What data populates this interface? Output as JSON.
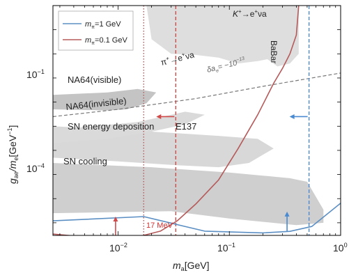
{
  "chart_data": {
    "type": "line",
    "xlabel_main": "m",
    "xlabel_sub": "a",
    "xlabel_unit": "[GeV]",
    "ylabel_main": "g",
    "ylabel_sub": "ae",
    "ylabel_slash": "/m",
    "ylabel_sub2": "e",
    "ylabel_unit": "[GeV",
    "ylabel_exp": "−1",
    "ylabel_close": "]",
    "x_scale": "log",
    "y_scale": "log",
    "xlim": [
      0.0026,
      1.0
    ],
    "ylim": [
      3e-07,
      1000
    ],
    "x_ticks": [
      {
        "value": 0.01,
        "base": "10",
        "exp": "−2"
      },
      {
        "value": 0.1,
        "base": "10",
        "exp": "−1"
      },
      {
        "value": 1.0,
        "base": "10",
        "exp": "0"
      }
    ],
    "y_ticks": [
      {
        "value": 0.1,
        "base": "10",
        "exp": "−1"
      },
      {
        "value": 0.0001,
        "base": "10",
        "exp": "−4"
      }
    ],
    "legend": {
      "position": "top-left",
      "entries": [
        {
          "label_pre": "m",
          "label_sub": "π",
          "label_post": "=1 GeV",
          "color": "#5b8fc4"
        },
        {
          "label_pre": "m",
          "label_sub": "π",
          "label_post": "=0.1 GeV",
          "color": "#b55a5a"
        }
      ]
    },
    "region_labels": {
      "kaon_pre": "K",
      "kaon_sup": "+",
      "kaon_arrow": "→e",
      "kaon_sup2": "+",
      "kaon_post": "νa",
      "babar": "BaBar",
      "pion_pre": "π",
      "pion_sup": "+",
      "pion_arrow": "→e",
      "pion_sup2": "+",
      "pion_post": "νa",
      "delta_a": "δa",
      "delta_sub": "e",
      "delta_eq": "= −10",
      "delta_exp": "−13",
      "na64_visible": "NA64(visible)",
      "na64_invisible": "NA64(invisible)",
      "sn_energy": "SN energy deposition",
      "e137": "E137",
      "sn_cooling": "SN cooling",
      "mev17": "17 MeV"
    },
    "series": [
      {
        "name": "",
        "color": "#5b8fc4",
        "points": [
          [
            0.0026,
            1.2e-06
          ],
          [
            0.017,
            1.8e-06
          ],
          [
            0.06,
            4.5e-07
          ],
          [
            0.2,
            3.8e-07
          ],
          [
            0.35,
            4.4e-07
          ],
          [
            0.55,
            7e-07
          ],
          [
            1.0,
            6.5e-06
          ]
        ]
      },
      {
        "name": "",
        "color": "#b55a5a",
        "points": [
          [
            0.0026,
            3.4e-07
          ],
          [
            0.005,
            2.6e-07
          ],
          [
            0.009,
            2.4e-07
          ],
          [
            0.015,
            2.6e-07
          ],
          [
            0.024,
            4.5e-07
          ],
          [
            0.034,
            1.2e-06
          ],
          [
            0.05,
            6e-06
          ],
          [
            0.08,
            6e-05
          ],
          [
            0.12,
            0.0012
          ],
          [
            0.18,
            0.03
          ],
          [
            0.25,
            0.6
          ],
          [
            0.3,
            2.5
          ],
          [
            0.35,
            10
          ],
          [
            0.4,
            60
          ],
          [
            0.42,
            1000
          ]
        ]
      }
    ],
    "vertical_lines": [
      {
        "x": 0.017,
        "color": "#b55a5a",
        "style": "dotted"
      },
      {
        "x": 0.033,
        "color": "#d14a4a",
        "style": "dashed"
      },
      {
        "x": 0.52,
        "color": "#4a8ad1",
        "style": "dashed"
      }
    ],
    "delta_line": {
      "color": "#777777",
      "points": [
        [
          0.0026,
          0.025
        ],
        [
          0.01,
          0.05
        ],
        [
          0.05,
          0.14
        ],
        [
          0.2,
          0.45
        ],
        [
          1.0,
          1.6
        ]
      ]
    },
    "arrows": [
      {
        "x": 0.033,
        "y": 0.025,
        "direction": "left",
        "color": "#d14a4a"
      },
      {
        "x": 0.52,
        "y": 0.025,
        "direction": "left",
        "color": "#4a8ad1"
      },
      {
        "x": 0.0095,
        "y": 2.8e-07,
        "direction": "up",
        "color": "#d14a4a"
      },
      {
        "x": 0.33,
        "y": 4.5e-07,
        "direction": "up",
        "color": "#4a8ad1"
      }
    ],
    "excluded_regions": [
      {
        "name": "SN cooling",
        "shade": "#c8c8c8",
        "points": [
          [
            0.0026,
            6e-06
          ],
          [
            0.006,
            2e-05
          ],
          [
            0.015,
            4e-05
          ],
          [
            0.04,
            4e-05
          ],
          [
            0.07,
            3.5e-05
          ],
          [
            0.1,
            2.5e-05
          ],
          [
            0.1,
            8e-06
          ],
          [
            0.04,
            8e-06
          ],
          [
            0.01,
            5.5e-06
          ],
          [
            0.0026,
            4.5e-06
          ]
        ]
      },
      {
        "name": "SN energy deposition",
        "shade": "#d8d8d8",
        "points": [
          [
            0.0026,
            0.0005
          ],
          [
            0.01,
            0.00035
          ],
          [
            0.03,
            0.00025
          ],
          [
            0.08,
            0.0002
          ],
          [
            0.15,
            0.0003
          ],
          [
            0.25,
            0.0012
          ],
          [
            0.18,
            0.003
          ],
          [
            0.08,
            0.004
          ],
          [
            0.02,
            0.006
          ],
          [
            0.0026,
            0.01
          ]
        ]
      },
      {
        "name": "E137",
        "shade": "#cfcfcf",
        "points": [
          [
            0.0026,
            0.0003
          ],
          [
            0.02,
            0.0002
          ],
          [
            0.05,
            0.00015
          ],
          [
            0.1,
            0.00012
          ],
          [
            0.2,
            9e-05
          ],
          [
            0.35,
            7e-05
          ],
          [
            0.5,
            5e-05
          ],
          [
            0.7,
            3.5e-06
          ],
          [
            0.7,
            1e-06
          ],
          [
            0.4,
            8e-07
          ],
          [
            0.1,
            1.5e-06
          ],
          [
            0.03,
            3e-06
          ],
          [
            0.0026,
            2.5e-06
          ]
        ]
      },
      {
        "name": "NA64(invisible)",
        "shade": "#dadada",
        "points": [
          [
            0.0026,
            0.002
          ],
          [
            0.008,
            0.003
          ],
          [
            0.02,
            0.006
          ],
          [
            0.04,
            0.012
          ],
          [
            0.06,
            0.03
          ],
          [
            0.04,
            0.04
          ],
          [
            0.015,
            0.015
          ],
          [
            0.0026,
            0.007
          ]
        ]
      },
      {
        "name": "NA64(visible)",
        "shade": "#c4c4c4",
        "points": [
          [
            0.0026,
            0.05
          ],
          [
            0.008,
            0.045
          ],
          [
            0.012,
            0.05
          ],
          [
            0.018,
            0.09
          ],
          [
            0.022,
            0.25
          ],
          [
            0.015,
            0.35
          ],
          [
            0.008,
            0.25
          ],
          [
            0.0026,
            0.2
          ]
        ]
      },
      {
        "name": "BaBar",
        "shade": "#dedede",
        "points": [
          [
            0.018,
            1000
          ],
          [
            0.42,
            1000
          ],
          [
            0.42,
            10
          ],
          [
            0.35,
            4
          ],
          [
            0.27,
            3
          ],
          [
            0.22,
            6
          ],
          [
            0.18,
            5
          ],
          [
            0.12,
            4
          ],
          [
            0.08,
            7
          ],
          [
            0.05,
            9
          ],
          [
            0.03,
            10
          ],
          [
            0.02,
            40
          ]
        ]
      }
    ],
    "grid": false
  }
}
